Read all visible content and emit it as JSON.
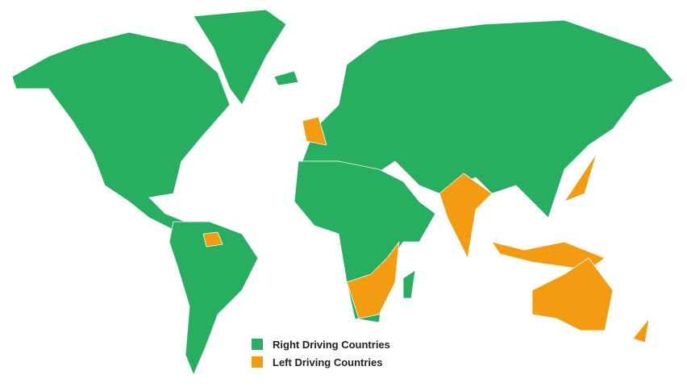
{
  "colors": {
    "right": "#27ae60",
    "left": "#f39c12",
    "border": "#ffffff"
  },
  "legend": {
    "items": [
      {
        "label": "Right Driving Countries",
        "color": "#27ae60"
      },
      {
        "label": "Left Driving Countries",
        "color": "#f39c12"
      }
    ]
  }
}
